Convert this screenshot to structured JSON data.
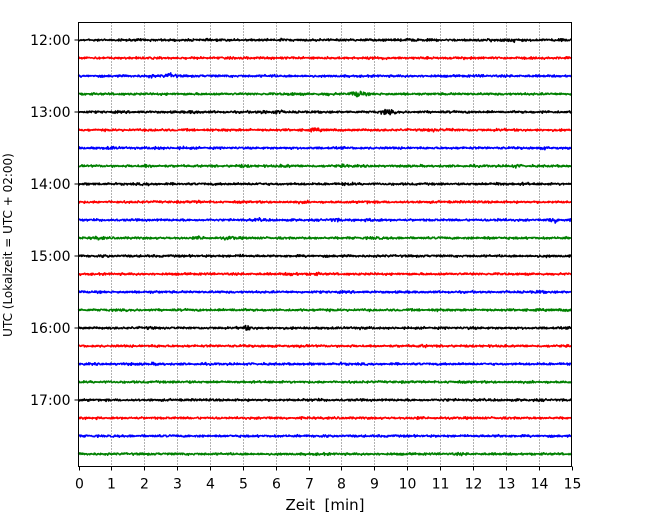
{
  "chart_data": {
    "type": "line",
    "title": "",
    "xlabel": "Zeit  [min]",
    "ylabel": "UTC (Lokalzeit = UTC + 02:00)",
    "xlim": [
      0,
      15
    ],
    "x_ticks": [
      "0",
      "1",
      "2",
      "3",
      "4",
      "5",
      "6",
      "7",
      "8",
      "9",
      "10",
      "11",
      "12",
      "13",
      "14",
      "15"
    ],
    "y_ticks": [
      "12:00",
      "13:00",
      "14:00",
      "15:00",
      "16:00",
      "17:00"
    ],
    "grid": {
      "x": true,
      "y": false,
      "style": "dotted"
    },
    "trace_interval_min": 15,
    "trace_colors": [
      "#000000",
      "#ff0000",
      "#0000ff",
      "#008000"
    ],
    "series": [
      {
        "start": "12:00",
        "color": "#000000",
        "events": [
          [
            6.1,
            1.4
          ],
          [
            10.1,
            1.6
          ],
          [
            12.5,
            1.6
          ],
          [
            13.2,
            2.3
          ],
          [
            14.6,
            1.8
          ]
        ]
      },
      {
        "start": "12:15",
        "color": "#ff0000",
        "events": [
          [
            9.2,
            1.5
          ],
          [
            11.8,
            1.3
          ]
        ]
      },
      {
        "start": "12:30",
        "color": "#0000ff",
        "events": [
          [
            2.2,
            1.6
          ],
          [
            2.8,
            2.6
          ],
          [
            5.8,
            1.4
          ],
          [
            12.2,
            1.3
          ]
        ]
      },
      {
        "start": "12:45",
        "color": "#008000",
        "events": [
          [
            6.5,
            1.5
          ],
          [
            7.6,
            1.6
          ],
          [
            8.5,
            3.6
          ]
        ]
      },
      {
        "start": "13:00",
        "color": "#000000",
        "events": [
          [
            3.5,
            1.8
          ],
          [
            5.6,
            1.8
          ],
          [
            6.0,
            2.2
          ],
          [
            9.4,
            2.8
          ],
          [
            14.2,
            1.3
          ]
        ]
      },
      {
        "start": "13:15",
        "color": "#ff0000",
        "events": [
          [
            2.3,
            1.4
          ],
          [
            4.5,
            1.3
          ],
          [
            7.2,
            1.8
          ],
          [
            10.8,
            1.7
          ],
          [
            11.3,
            1.5
          ],
          [
            12.8,
            1.3
          ]
        ]
      },
      {
        "start": "13:30",
        "color": "#0000ff",
        "events": [
          [
            1.0,
            1.6
          ],
          [
            2.4,
            1.6
          ],
          [
            3.2,
            1.4
          ],
          [
            14.2,
            1.4
          ]
        ]
      },
      {
        "start": "13:45",
        "color": "#008000",
        "events": [
          [
            2.1,
            1.7
          ],
          [
            5.0,
            1.6
          ],
          [
            6.3,
            1.6
          ],
          [
            8.1,
            1.5
          ],
          [
            13.3,
            1.7
          ]
        ]
      },
      {
        "start": "14:00",
        "color": "#000000",
        "events": [
          [
            2.1,
            1.4
          ],
          [
            5.5,
            1.3
          ],
          [
            8.2,
            1.5
          ],
          [
            12.8,
            1.8
          ],
          [
            13.6,
            1.4
          ]
        ]
      },
      {
        "start": "14:15",
        "color": "#ff0000",
        "events": [
          [
            3.6,
            1.4
          ],
          [
            6.8,
            1.3
          ],
          [
            8.8,
            1.4
          ]
        ]
      },
      {
        "start": "14:30",
        "color": "#0000ff",
        "events": [
          [
            5.5,
            1.6
          ],
          [
            7.8,
            1.8
          ],
          [
            9.0,
            2.0
          ],
          [
            12.8,
            1.5
          ],
          [
            14.5,
            2.8
          ]
        ]
      },
      {
        "start": "14:45",
        "color": "#008000",
        "events": [
          [
            0.6,
            1.8
          ],
          [
            3.7,
            1.8
          ],
          [
            4.6,
            1.9
          ],
          [
            9.0,
            1.5
          ],
          [
            12.5,
            1.4
          ]
        ]
      },
      {
        "start": "15:00",
        "color": "#000000",
        "events": [
          [
            0.8,
            1.4
          ],
          [
            4.9,
            1.3
          ],
          [
            14.2,
            1.3
          ]
        ]
      },
      {
        "start": "15:15",
        "color": "#ff0000",
        "events": [
          [
            6.5,
            1.8
          ],
          [
            7.2,
            1.6
          ]
        ]
      },
      {
        "start": "15:30",
        "color": "#0000ff",
        "events": [
          [
            2.3,
            1.3
          ],
          [
            14.0,
            1.5
          ]
        ]
      },
      {
        "start": "15:45",
        "color": "#008000",
        "events": [
          [
            4.7,
            1.4
          ],
          [
            7.4,
            1.3
          ],
          [
            11.0,
            1.3
          ],
          [
            14.8,
            1.3
          ]
        ]
      },
      {
        "start": "16:00",
        "color": "#000000",
        "events": [
          [
            2.1,
            1.4
          ],
          [
            5.1,
            2.3
          ],
          [
            8.6,
            1.3
          ],
          [
            12.0,
            1.3
          ]
        ]
      },
      {
        "start": "16:15",
        "color": "#ff0000",
        "events": [
          [
            2.4,
            1.3
          ],
          [
            6.8,
            1.3
          ],
          [
            10.5,
            1.4
          ]
        ]
      },
      {
        "start": "16:30",
        "color": "#0000ff",
        "events": [
          [
            1.5,
            1.4
          ],
          [
            2.4,
            1.5
          ],
          [
            8.0,
            1.3
          ]
        ]
      },
      {
        "start": "16:45",
        "color": "#008000",
        "events": [
          [
            3.3,
            1.3
          ],
          [
            11.4,
            1.3
          ]
        ]
      },
      {
        "start": "17:00",
        "color": "#000000",
        "events": [
          [
            7.2,
            1.3
          ],
          [
            11.2,
            1.3
          ],
          [
            14.0,
            1.3
          ]
        ]
      },
      {
        "start": "17:15",
        "color": "#ff0000",
        "events": [
          [
            5.8,
            1.3
          ],
          [
            10.3,
            1.3
          ]
        ]
      },
      {
        "start": "17:30",
        "color": "#0000ff",
        "events": [
          [
            7.5,
            1.3
          ],
          [
            12.8,
            1.4
          ]
        ]
      },
      {
        "start": "17:45",
        "color": "#008000",
        "events": [
          [
            7.4,
            1.3
          ],
          [
            11.6,
            1.3
          ]
        ]
      }
    ]
  }
}
